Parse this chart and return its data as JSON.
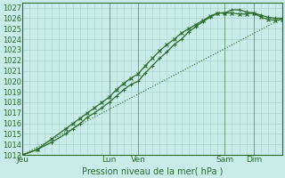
{
  "title": "",
  "xlabel": "Pression niveau de la mer( hPa )",
  "ylabel": "",
  "bg_color": "#c8ece8",
  "grid_color": "#a8d4cc",
  "line_color": "#2d6b2d",
  "ylim": [
    1013,
    1027.5
  ],
  "xlim": [
    0,
    108
  ],
  "yticks": [
    1013,
    1014,
    1015,
    1016,
    1017,
    1018,
    1019,
    1020,
    1021,
    1022,
    1023,
    1024,
    1025,
    1026,
    1027
  ],
  "xticks": [
    0,
    36,
    48,
    84,
    96
  ],
  "xtick_labels": [
    "Jeu",
    "Lun",
    "Ven",
    "Sam",
    "Dim"
  ],
  "vlines": [
    0,
    36,
    48,
    84,
    96
  ],
  "series": [
    {
      "x": [
        0,
        108
      ],
      "y": [
        1013.0,
        1026.0
      ],
      "style": "dotted",
      "lw": 0.8,
      "marker": null
    },
    {
      "x": [
        0,
        6,
        12,
        18,
        21,
        24,
        27,
        30,
        33,
        36,
        39,
        42,
        45,
        48,
        51,
        54,
        57,
        60,
        63,
        66,
        69,
        72,
        75,
        78,
        81,
        84,
        87,
        90,
        93,
        96,
        99,
        102,
        105,
        108
      ],
      "y": [
        1013.0,
        1013.5,
        1014.2,
        1015.0,
        1015.5,
        1016.0,
        1016.6,
        1017.0,
        1017.5,
        1018.0,
        1018.6,
        1019.2,
        1019.7,
        1020.0,
        1020.8,
        1021.5,
        1022.2,
        1022.8,
        1023.5,
        1024.0,
        1024.7,
        1025.2,
        1025.7,
        1026.1,
        1026.5,
        1026.5,
        1026.8,
        1026.8,
        1026.6,
        1026.5,
        1026.3,
        1026.1,
        1026.0,
        1026.0
      ],
      "style": "solid",
      "lw": 0.9,
      "marker": "+"
    },
    {
      "x": [
        0,
        6,
        12,
        18,
        21,
        24,
        27,
        30,
        33,
        36,
        39,
        42,
        45,
        48,
        51,
        54,
        57,
        60,
        63,
        66,
        69,
        72,
        75,
        78,
        81,
        84,
        87,
        90,
        93,
        96,
        99,
        102,
        105,
        108
      ],
      "y": [
        1013.0,
        1013.5,
        1014.5,
        1015.5,
        1016.0,
        1016.5,
        1017.0,
        1017.5,
        1018.0,
        1018.5,
        1019.2,
        1019.8,
        1020.3,
        1020.7,
        1021.5,
        1022.2,
        1022.9,
        1023.5,
        1024.0,
        1024.6,
        1025.0,
        1025.4,
        1025.8,
        1026.2,
        1026.5,
        1026.5,
        1026.5,
        1026.4,
        1026.4,
        1026.5,
        1026.1,
        1025.9,
        1025.8,
        1025.9
      ],
      "style": "solid",
      "lw": 0.9,
      "marker": "x"
    }
  ]
}
